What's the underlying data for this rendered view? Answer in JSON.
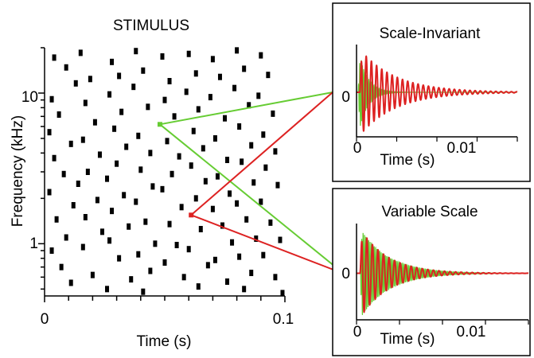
{
  "colors": {
    "events": "#000000",
    "green": "#66cc33",
    "red": "#dd2222"
  },
  "chart_data": [
    {
      "type": "scatter",
      "title": "STIMULUS",
      "xlabel": "Time (s)",
      "ylabel": "Frequency (kHz)",
      "xlim": [
        0,
        0.1
      ],
      "ylim": [
        0.45,
        20
      ],
      "yscale": "log",
      "x_ticks": [
        0,
        0.1
      ],
      "x_tick_labels": [
        "0",
        "0.1"
      ],
      "y_ticks": [
        1,
        10
      ],
      "y_tick_labels": [
        "1",
        "10"
      ],
      "marker": "square",
      "marker_color": "#000000",
      "highlighted_events": [
        {
          "x": 0.048,
          "y": 6.2,
          "color": "#66cc33"
        },
        {
          "x": 0.061,
          "y": 1.55,
          "color": "#dd2222"
        }
      ],
      "points": [
        [
          0.004,
          17.2
        ],
        [
          0.009,
          14.8
        ],
        [
          0.013,
          11.6
        ],
        [
          0.003,
          9.1
        ],
        [
          0.006,
          7.2
        ],
        [
          0.002,
          5.5
        ],
        [
          0.011,
          4.6
        ],
        [
          0.004,
          3.7
        ],
        [
          0.008,
          2.9
        ],
        [
          0.002,
          2.2
        ],
        [
          0.012,
          1.8
        ],
        [
          0.005,
          1.45
        ],
        [
          0.009,
          1.1
        ],
        [
          0.003,
          0.9
        ],
        [
          0.007,
          0.7
        ],
        [
          0.011,
          0.55
        ],
        [
          0.015,
          18.5
        ],
        [
          0.019,
          12.4
        ],
        [
          0.017,
          8.6
        ],
        [
          0.021,
          6.4
        ],
        [
          0.016,
          4.9
        ],
        [
          0.023,
          3.9
        ],
        [
          0.018,
          3.0
        ],
        [
          0.014,
          2.5
        ],
        [
          0.022,
          1.95
        ],
        [
          0.017,
          1.5
        ],
        [
          0.024,
          1.2
        ],
        [
          0.016,
          0.95
        ],
        [
          0.02,
          0.62
        ],
        [
          0.026,
          0.5
        ],
        [
          0.028,
          16.1
        ],
        [
          0.031,
          13.0
        ],
        [
          0.027,
          9.8
        ],
        [
          0.032,
          7.5
        ],
        [
          0.029,
          5.8
        ],
        [
          0.034,
          4.4
        ],
        [
          0.03,
          3.4
        ],
        [
          0.026,
          2.7
        ],
        [
          0.033,
          2.1
        ],
        [
          0.028,
          1.65
        ],
        [
          0.035,
          1.3
        ],
        [
          0.027,
          1.05
        ],
        [
          0.031,
          0.8
        ],
        [
          0.036,
          0.58
        ],
        [
          0.038,
          19.0
        ],
        [
          0.041,
          14.1
        ],
        [
          0.037,
          11.0
        ],
        [
          0.043,
          8.1
        ],
        [
          0.039,
          5.2
        ],
        [
          0.044,
          4.0
        ],
        [
          0.04,
          3.1
        ],
        [
          0.045,
          2.4
        ],
        [
          0.038,
          1.9
        ],
        [
          0.042,
          1.4
        ],
        [
          0.046,
          1.0
        ],
        [
          0.039,
          0.85
        ],
        [
          0.044,
          0.66
        ],
        [
          0.041,
          0.48
        ],
        [
          0.049,
          17.5
        ],
        [
          0.052,
          12.0
        ],
        [
          0.05,
          9.0
        ],
        [
          0.054,
          7.0
        ],
        [
          0.051,
          4.8
        ],
        [
          0.056,
          3.8
        ],
        [
          0.053,
          2.9
        ],
        [
          0.049,
          2.3
        ],
        [
          0.057,
          1.75
        ],
        [
          0.052,
          1.35
        ],
        [
          0.055,
          0.98
        ],
        [
          0.05,
          0.75
        ],
        [
          0.058,
          0.6
        ],
        [
          0.06,
          18.2
        ],
        [
          0.063,
          13.5
        ],
        [
          0.059,
          10.2
        ],
        [
          0.064,
          7.8
        ],
        [
          0.062,
          5.6
        ],
        [
          0.066,
          4.3
        ],
        [
          0.061,
          3.3
        ],
        [
          0.067,
          2.6
        ],
        [
          0.063,
          2.0
        ],
        [
          0.065,
          1.25
        ],
        [
          0.06,
          0.92
        ],
        [
          0.068,
          0.72
        ],
        [
          0.064,
          0.52
        ],
        [
          0.07,
          16.8
        ],
        [
          0.073,
          12.8
        ],
        [
          0.069,
          9.4
        ],
        [
          0.075,
          6.8
        ],
        [
          0.071,
          5.0
        ],
        [
          0.076,
          3.6
        ],
        [
          0.072,
          2.8
        ],
        [
          0.077,
          2.15
        ],
        [
          0.07,
          1.7
        ],
        [
          0.074,
          1.32
        ],
        [
          0.078,
          1.02
        ],
        [
          0.071,
          0.78
        ],
        [
          0.076,
          0.56
        ],
        [
          0.08,
          19.2
        ],
        [
          0.083,
          14.5
        ],
        [
          0.079,
          10.8
        ],
        [
          0.085,
          8.3
        ],
        [
          0.081,
          6.0
        ],
        [
          0.086,
          4.5
        ],
        [
          0.082,
          3.5
        ],
        [
          0.087,
          2.55
        ],
        [
          0.08,
          1.85
        ],
        [
          0.084,
          1.45
        ],
        [
          0.088,
          1.08
        ],
        [
          0.081,
          0.82
        ],
        [
          0.086,
          0.64
        ],
        [
          0.083,
          0.5
        ],
        [
          0.09,
          17.8
        ],
        [
          0.093,
          13.2
        ],
        [
          0.089,
          9.6
        ],
        [
          0.095,
          7.3
        ],
        [
          0.091,
          5.3
        ],
        [
          0.096,
          4.1
        ],
        [
          0.092,
          3.2
        ],
        [
          0.097,
          2.45
        ],
        [
          0.09,
          1.9
        ],
        [
          0.094,
          1.38
        ],
        [
          0.098,
          1.06
        ],
        [
          0.091,
          0.84
        ],
        [
          0.096,
          0.6
        ],
        [
          0.099,
          0.47
        ]
      ]
    },
    {
      "type": "line",
      "title": "Scale-Invariant",
      "xlabel": "Time (s)",
      "ylabel": "",
      "xlim": [
        0,
        0.02
      ],
      "ylim": [
        -1,
        1
      ],
      "x_ticks": [
        0,
        0.01
      ],
      "x_tick_labels": [
        "0",
        "0.01"
      ],
      "y_ticks": [
        0
      ],
      "y_tick_labels": [
        "0"
      ],
      "series": [
        {
          "color": "#66cc33",
          "freq_hz": 6200,
          "decay_s": 0.0011,
          "start_s": 0.0002
        },
        {
          "color": "#dd2222",
          "freq_hz": 1550,
          "decay_s": 0.0044,
          "start_s": 0.0004
        }
      ]
    },
    {
      "type": "line",
      "title": "Variable Scale",
      "xlabel": "Time (s)",
      "ylabel": "",
      "xlim": [
        0,
        0.02
      ],
      "ylim": [
        -1,
        1
      ],
      "x_ticks": [
        0,
        0.01
      ],
      "x_tick_labels": [
        "0",
        "0.01"
      ],
      "y_ticks": [
        0
      ],
      "y_tick_labels": [
        "0"
      ],
      "series": [
        {
          "color": "#66cc33",
          "freq_hz": 6200,
          "decay_s": 0.0032,
          "start_s": 0.0004
        },
        {
          "color": "#dd2222",
          "freq_hz": 1550,
          "decay_s": 0.0032,
          "start_s": 0.0004
        }
      ]
    }
  ]
}
